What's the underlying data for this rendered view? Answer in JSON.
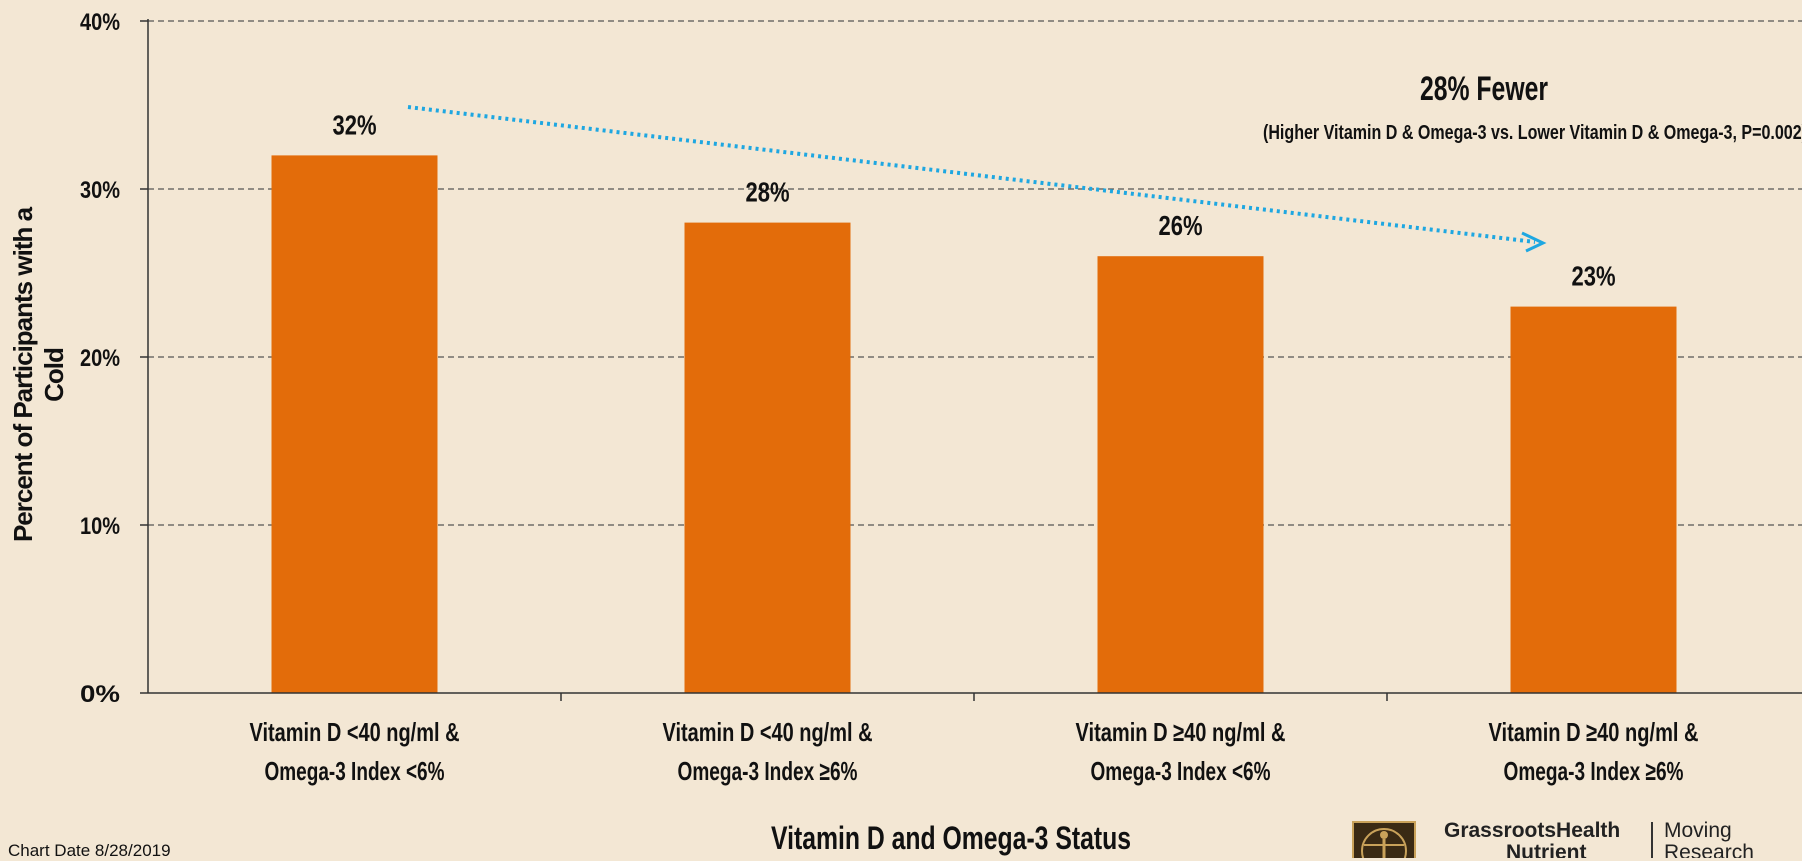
{
  "chart_data": {
    "type": "bar",
    "categories": [
      [
        "Vitamin D <40 ng/ml &",
        "Omega-3 Index <6%"
      ],
      [
        "Vitamin D <40 ng/ml &",
        "Omega-3 Index ≥6%"
      ],
      [
        "Vitamin D ≥40 ng/ml &",
        "Omega-3 Index <6%"
      ],
      [
        "Vitamin D ≥40 ng/ml &",
        "Omega-3 Index ≥6%"
      ]
    ],
    "values": [
      32,
      28,
      26,
      23
    ],
    "value_labels": [
      "32%",
      "28%",
      "26%",
      "23%"
    ],
    "ylabel": "Percent of Participants with a Cold",
    "xlabel": "Vitamin D and Omega-3 Status",
    "ylim": [
      0,
      40
    ],
    "yticks": [
      0,
      10,
      20,
      30,
      40
    ],
    "ytick_labels": [
      "0%",
      "10%",
      "20%",
      "30%",
      "40%"
    ],
    "grid": true,
    "bar_color": "#e36c0a",
    "annotation": {
      "headline": "28% Fewer",
      "detail": "(Higher Vitamin D & Omega-3 vs. Lower Vitamin D & Omega-3, P=0.002)",
      "arrow_color": "#1ea7e1"
    }
  },
  "footer": {
    "chart_date": "Chart Date 8/28/2019",
    "logo_name": [
      "GrassrootsHealth",
      "Nutrient"
    ],
    "logo_tagline": [
      "Moving",
      "Research"
    ]
  }
}
